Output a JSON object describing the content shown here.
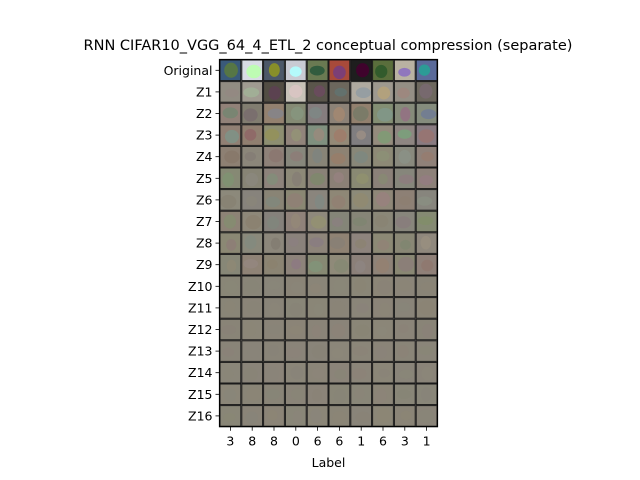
{
  "chart_data": {
    "type": "heatmap",
    "title": "RNN CIFAR10_VGG_64_4_ETL_2 conceptual compression (separate)",
    "xlabel": "Label",
    "ylabel": "",
    "x_tick_labels": [
      "3",
      "8",
      "8",
      "0",
      "6",
      "6",
      "1",
      "6",
      "3",
      "1"
    ],
    "y_tick_labels": [
      "Original",
      "Z1",
      "Z2",
      "Z3",
      "Z4",
      "Z5",
      "Z6",
      "Z7",
      "Z8",
      "Z9",
      "Z10",
      "Z11",
      "Z12",
      "Z13",
      "Z14",
      "Z15",
      "Z16"
    ],
    "rows": 17,
    "columns": 10,
    "cell_content": "image thumbnails (Original row shows CIFAR10 samples; Z1-Z16 rows show per-latent reconstructions, becoming uniformly gray-brown blurs by Z10-Z16)",
    "colors": {
      "grid_line": "#1a1a1a",
      "blur_base": "#8a8578",
      "original_palette": [
        "#3a5a7a",
        "#d8dce4",
        "#4c5868",
        "#c9cbd3",
        "#6a7a52",
        "#a84a3a",
        "#1e1e1e",
        "#5a6e3c",
        "#b9b2a2",
        "#5a6a9a"
      ]
    }
  }
}
